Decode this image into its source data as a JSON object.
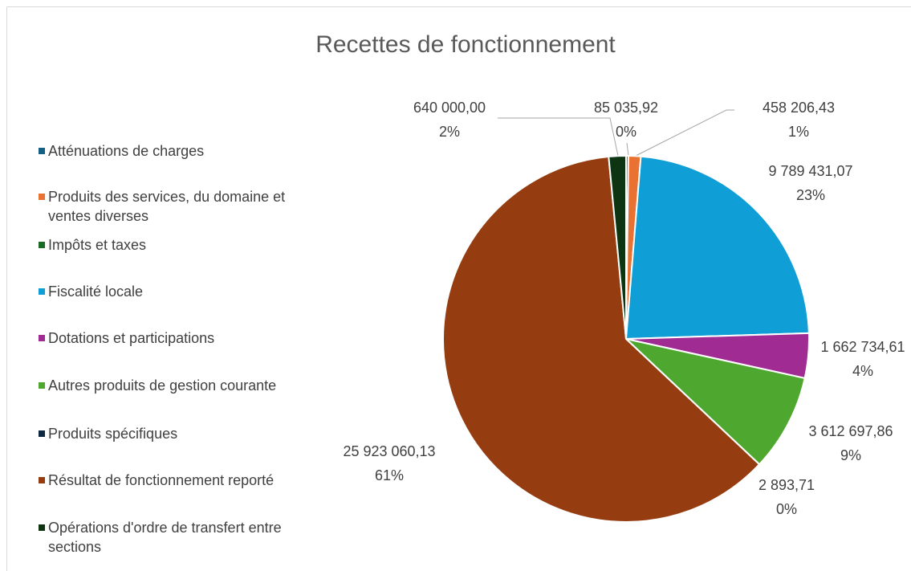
{
  "chart_data": {
    "type": "pie",
    "title": "Recettes de fonctionnement",
    "categories": [
      "Atténuations de charges",
      "Produits des services, du domaine et ventes diverses",
      "Impôts et taxes",
      "Fiscalité locale",
      "Dotations et participations",
      "Autres produits de gestion courante",
      "Produits spécifiques",
      "Résultat de fonctionnement reporté",
      "Opérations d'ordre de transfert entre sections"
    ],
    "values": [
      85035.92,
      458206.43,
      null,
      9789431.07,
      1662734.61,
      3612697.86,
      2893.71,
      25923060.13,
      640000.0
    ],
    "value_labels": [
      "85 035,92",
      "458 206,43",
      null,
      "9 789 431,07",
      "1 662 734,61",
      "3 612 697,86",
      "2 893,71",
      "25 923 060,13",
      "640 000,00"
    ],
    "percent_labels": [
      "0%",
      "1%",
      null,
      "23%",
      "4%",
      "9%",
      "0%",
      "61%",
      "2%"
    ],
    "colors": [
      "#156082",
      "#e97132",
      "#196b24",
      "#0f9ed5",
      "#a02b93",
      "#4ea72e",
      "#0e2841",
      "#953c10",
      "#0d3512"
    ],
    "legend": "left"
  }
}
